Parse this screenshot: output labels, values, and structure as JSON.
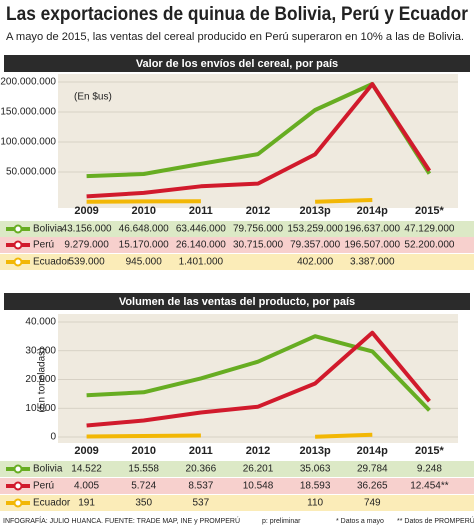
{
  "header": {
    "title": "Las exportaciones de quinua de Bolivia, Perú y Ecuador",
    "subtitle": "A mayo de 2015, las ventas del cereal producido en Perú superaron en 10% a las de Bolivia."
  },
  "chart_data": [
    {
      "type": "line",
      "title": "Valor de los envíos del cereal, por país",
      "unit_label": "(En $us)",
      "categories": [
        "2009",
        "2010",
        "2011",
        "2012",
        "2013p",
        "2014p",
        "2015*"
      ],
      "ylim": [
        0,
        200000000
      ],
      "yticks": [
        {
          "value": 50000000,
          "label": "50.000.000"
        },
        {
          "value": 100000000,
          "label": "100.000.000"
        },
        {
          "value": 150000000,
          "label": "150.000.000"
        },
        {
          "value": 200000000,
          "label": "200.000.000"
        }
      ],
      "grid": true,
      "series": [
        {
          "name": "Bolivia",
          "color": "#67ad22",
          "values": [
            43156000,
            46648000,
            63446000,
            79756000,
            153259000,
            196637000,
            47129000
          ],
          "value_labels": [
            "43.156.000",
            "46.648.000",
            "63.446.000",
            "79.756.000",
            "153.259.000",
            "196.637.000",
            "47.129.000"
          ]
        },
        {
          "name": "Perú",
          "color": "#d11a2c",
          "values": [
            9279000,
            15170000,
            26140000,
            30715000,
            79357000,
            196507000,
            52200000
          ],
          "value_labels": [
            "9.279.000",
            "15.170.000",
            "26.140.000",
            "30.715.000",
            "79.357.000",
            "196.507.000",
            "52.200.000"
          ]
        },
        {
          "name": "Ecuador",
          "color": "#f2b705",
          "values": [
            539000,
            945000,
            1401000,
            null,
            402000,
            3387000,
            null
          ],
          "value_labels": [
            "539.000",
            "945.000",
            "1.401.000",
            null,
            "402.000",
            "3.387.000",
            null
          ]
        }
      ]
    },
    {
      "type": "line",
      "title": "Volumen de las ventas del producto, por país",
      "unit_label": "(En toneladas)",
      "categories": [
        "2009",
        "2010",
        "2011",
        "2012",
        "2013p",
        "2014p",
        "2015*"
      ],
      "ylim": [
        0,
        40000
      ],
      "yticks": [
        0,
        {
          "value": 10000,
          "label": "10.000"
        },
        {
          "value": 20000,
          "label": "20.000"
        },
        {
          "value": 30000,
          "label": "30.000"
        },
        {
          "value": 40000,
          "label": "40.000"
        }
      ],
      "grid": true,
      "series": [
        {
          "name": "Bolivia",
          "color": "#67ad22",
          "values": [
            14522,
            15558,
            20366,
            26201,
            35063,
            29784,
            9248
          ],
          "value_labels": [
            "14.522",
            "15.558",
            "20.366",
            "26.201",
            "35.063",
            "29.784",
            "9.248"
          ]
        },
        {
          "name": "Perú",
          "color": "#d11a2c",
          "values": [
            4005,
            5724,
            8537,
            10548,
            18593,
            36265,
            12454
          ],
          "value_labels": [
            "4.005",
            "5.724",
            "8.537",
            "10.548",
            "18.593",
            "36.265",
            "12.454**"
          ]
        },
        {
          "name": "Ecuador",
          "color": "#f2b705",
          "values": [
            191,
            350,
            537,
            null,
            110,
            749,
            null
          ],
          "value_labels": [
            "191",
            "350",
            "537",
            null,
            "110",
            "749",
            null
          ]
        }
      ]
    }
  ],
  "footer": {
    "credit": "INFOGRAFÍA: JULIO HUANCA. FUENTE: TRADE MAP, INE y PROMPERÚ",
    "note_p": "p: preliminar",
    "note_1": "* Datos a mayo",
    "note_2": "** Datos de PROMPERÚ"
  }
}
